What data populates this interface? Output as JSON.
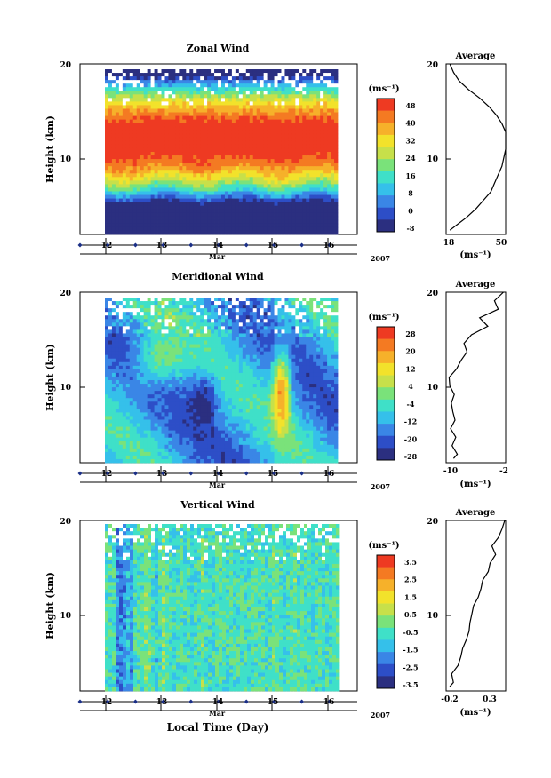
{
  "chart_data": [
    {
      "type": "heatmap",
      "title": "Zonal Wind",
      "ylabel": "Height (km)",
      "yticks": [
        "20",
        "10"
      ],
      "ylim": [
        0,
        20
      ],
      "xticks": [
        "12",
        "13",
        "14",
        "15",
        "16"
      ],
      "month_label": "Mar",
      "year_label": "2007",
      "colorbar": {
        "unit_label": "(ms⁻¹)",
        "ticks": [
          "48",
          "40",
          "32",
          "24",
          "16",
          "8",
          "0",
          "-8"
        ],
        "min": -12,
        "max": 52
      },
      "pattern": "zonal",
      "average": {
        "title": "Average",
        "xlabel": "(ms⁻¹)",
        "xticks": [
          "18",
          "50"
        ],
        "xlim": [
          18,
          50
        ],
        "yticks": [
          "20",
          "10"
        ],
        "heights": [
          0.5,
          1,
          2,
          3,
          4,
          5,
          6,
          7,
          8,
          9,
          10,
          11,
          12,
          13,
          14,
          15,
          16,
          17,
          18,
          19,
          20
        ],
        "values": [
          20,
          23,
          29,
          34,
          38,
          42,
          44,
          46,
          48,
          49,
          50,
          51,
          50,
          48,
          45,
          41,
          36,
          30,
          25,
          22,
          20
        ]
      }
    },
    {
      "type": "heatmap",
      "title": "Meridional Wind",
      "ylabel": "Height (km)",
      "yticks": [
        "20",
        "10"
      ],
      "ylim": [
        0,
        20
      ],
      "xticks": [
        "12",
        "13",
        "14",
        "15",
        "16"
      ],
      "month_label": "Mar",
      "year_label": "2007",
      "colorbar": {
        "unit_label": "(ms⁻¹)",
        "ticks": [
          "28",
          "20",
          "12",
          "4",
          "-4",
          "-12",
          "-20",
          "-28"
        ],
        "min": -32,
        "max": 32
      },
      "pattern": "meridional",
      "average": {
        "title": "Average",
        "xlabel": "(ms⁻¹)",
        "xticks": [
          "-10",
          "-2"
        ],
        "xlim": [
          -10,
          -2
        ],
        "yticks": [
          "20",
          "10"
        ],
        "heights": [
          0.5,
          1,
          2,
          3,
          4,
          5,
          6,
          7,
          8,
          9,
          10,
          11,
          12,
          13,
          14,
          15,
          16,
          17,
          18,
          19,
          20
        ],
        "values": [
          -9,
          -8.5,
          -9.2,
          -8.7,
          -9.4,
          -8.8,
          -9.1,
          -9.3,
          -8.9,
          -9.5,
          -9.6,
          -8.6,
          -8,
          -7.2,
          -7.6,
          -6.6,
          -4.4,
          -5.5,
          -3,
          -3.5,
          -2.3
        ]
      }
    },
    {
      "type": "heatmap",
      "title": "Vertical Wind",
      "ylabel": "Height (km)",
      "yticks": [
        "20",
        "10"
      ],
      "ylim": [
        0,
        20
      ],
      "xticks": [
        "12",
        "13",
        "14",
        "15",
        "16"
      ],
      "month_label": "Mar",
      "year_label": "2007",
      "xlabel": "Local Time (Day)",
      "colorbar": {
        "unit_label": "(ms⁻¹)",
        "ticks": [
          "3.5",
          "2.5",
          "1.5",
          "0.5",
          "-0.5",
          "-1.5",
          "-2.5",
          "-3.5"
        ],
        "min": -4,
        "max": 4
      },
      "pattern": "vertical",
      "average": {
        "title": "Average",
        "xlabel": "(ms⁻¹)",
        "xticks": [
          "-0.2",
          "0.3"
        ],
        "xlim": [
          -0.3,
          0.35
        ],
        "yticks": [
          "20",
          "10"
        ],
        "heights": [
          0.5,
          1,
          2,
          3,
          4,
          5,
          6,
          7,
          8,
          9,
          10,
          11,
          12,
          13,
          14,
          15,
          16,
          17,
          18,
          19,
          20
        ],
        "values": [
          -0.26,
          -0.22,
          -0.24,
          -0.17,
          -0.14,
          -0.12,
          -0.08,
          -0.05,
          -0.04,
          -0.02,
          0.0,
          0.05,
          0.08,
          0.1,
          0.16,
          0.18,
          0.24,
          0.2,
          0.27,
          0.31,
          0.34
        ]
      }
    }
  ],
  "colors": {
    "ramp": [
      "#2b2f80",
      "#2d4ec7",
      "#3a86e6",
      "#35c0ea",
      "#3fe0c8",
      "#7ae27a",
      "#c7e04a",
      "#f2e22b",
      "#f6b12a",
      "#f47a22",
      "#ee3a22"
    ],
    "missing": "#ffffff",
    "axis": "#000000",
    "tick_marker": "#1b2f86"
  }
}
